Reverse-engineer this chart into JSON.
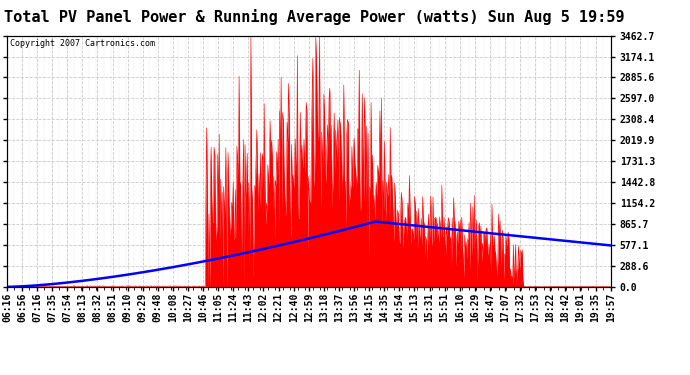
{
  "title": "Total PV Panel Power & Running Average Power (watts) Sun Aug 5 19:59",
  "copyright": "Copyright 2007 Cartronics.com",
  "yticks": [
    0.0,
    288.6,
    577.1,
    865.7,
    1154.2,
    1442.8,
    1731.3,
    2019.9,
    2308.4,
    2597.0,
    2885.6,
    3174.1,
    3462.7
  ],
  "ylim": [
    0.0,
    3462.7
  ],
  "xtick_labels": [
    "06:16",
    "06:56",
    "07:16",
    "07:35",
    "07:54",
    "08:13",
    "08:32",
    "08:51",
    "09:10",
    "09:29",
    "09:48",
    "10:08",
    "10:27",
    "10:46",
    "11:05",
    "11:24",
    "11:43",
    "12:02",
    "12:21",
    "12:40",
    "12:59",
    "13:18",
    "13:37",
    "13:56",
    "14:15",
    "14:35",
    "14:54",
    "15:13",
    "15:31",
    "15:51",
    "16:10",
    "16:29",
    "16:47",
    "17:07",
    "17:32",
    "17:53",
    "18:22",
    "18:42",
    "19:01",
    "19:35",
    "19:57"
  ],
  "background_color": "#ffffff",
  "plot_bg_color": "#ffffff",
  "grid_color": "#cccccc",
  "red_color": "#ff0000",
  "blue_color": "#0000ff",
  "title_fontsize": 11,
  "tick_fontsize": 7,
  "fig_width": 6.9,
  "fig_height": 3.75,
  "dpi": 100
}
